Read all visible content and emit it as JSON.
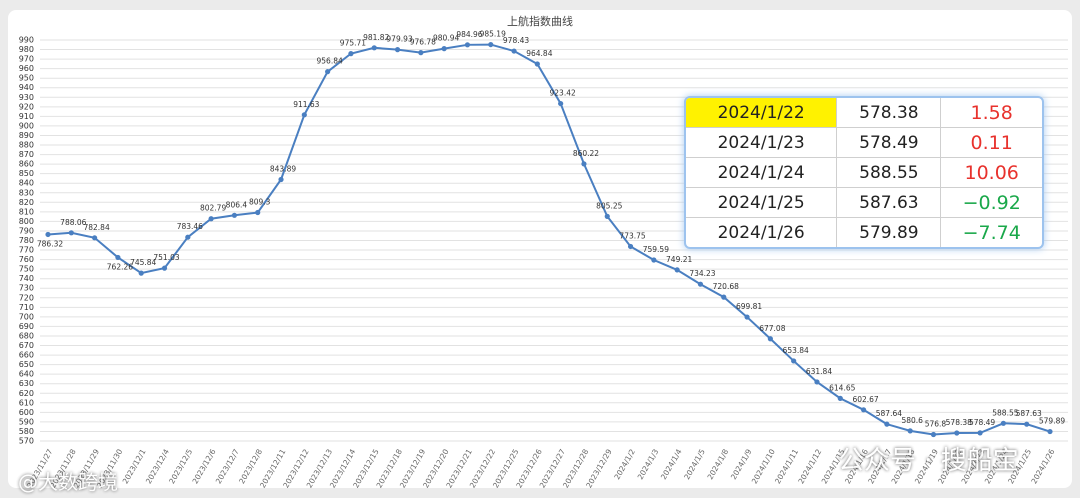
{
  "chart_data": {
    "type": "line",
    "title": "上航指数曲线",
    "categories": [
      "2023/11/27",
      "2023/11/28",
      "2023/11/29",
      "2023/11/30",
      "2023/12/1",
      "2023/12/4",
      "2023/12/5",
      "2023/12/6",
      "2023/12/7",
      "2023/12/8",
      "2023/12/11",
      "2023/12/12",
      "2023/12/13",
      "2023/12/14",
      "2023/12/15",
      "2023/12/18",
      "2023/12/19",
      "2023/12/20",
      "2023/12/21",
      "2023/12/22",
      "2023/12/25",
      "2023/12/26",
      "2023/12/27",
      "2023/12/28",
      "2023/12/29",
      "2024/1/2",
      "2024/1/3",
      "2024/1/4",
      "2024/1/5",
      "2024/1/8",
      "2024/1/9",
      "2024/1/10",
      "2024/1/11",
      "2024/1/12",
      "2024/1/15",
      "2024/1/16",
      "2024/1/17",
      "2024/1/18",
      "2024/1/19",
      "2024/1/22",
      "2024/1/23",
      "2024/1/24",
      "2024/1/25",
      "2024/1/26"
    ],
    "series": [
      {
        "name": "上航指数",
        "color": "#4a7fc1",
        "values": [
          786.32,
          788.06,
          782.84,
          762.26,
          745.84,
          751.03,
          783.46,
          802.79,
          806.4,
          809.3,
          843.89,
          911.63,
          956.84,
          975.71,
          981.82,
          979.93,
          976.78,
          980.94,
          984.96,
          985.19,
          978.43,
          964.84,
          923.42,
          860.22,
          805.25,
          773.75,
          759.59,
          749.21,
          734.23,
          720.68,
          699.81,
          677.08,
          653.84,
          631.84,
          614.65,
          602.67,
          587.64,
          580.6,
          576.8,
          578.38,
          578.49,
          588.55,
          587.63,
          579.89
        ]
      }
    ],
    "ylim": [
      570,
      990
    ],
    "yticks": [
      570,
      580,
      590,
      600,
      610,
      620,
      630,
      640,
      650,
      660,
      670,
      680,
      690,
      700,
      710,
      720,
      730,
      740,
      750,
      760,
      770,
      780,
      790,
      800,
      810,
      820,
      830,
      840,
      850,
      860,
      870,
      880,
      890,
      900,
      910,
      920,
      930,
      940,
      950,
      960,
      970,
      980,
      990
    ],
    "grid": true
  },
  "table": {
    "rows": [
      {
        "cells": [
          "2024/1/22",
          "578.38",
          "1.58"
        ],
        "color": "#e8322d",
        "highlight": "#fff200"
      },
      {
        "cells": [
          "2024/1/23",
          "578.49",
          "0.11"
        ],
        "color": "#e8322d"
      },
      {
        "cells": [
          "2024/1/24",
          "588.55",
          "10.06"
        ],
        "color": "#e8322d"
      },
      {
        "cells": [
          "2024/1/25",
          "587.63",
          "−0.92"
        ],
        "color": "#1aa84a"
      },
      {
        "cells": [
          "2024/1/26",
          "579.89",
          "−7.74"
        ],
        "color": "#1aa84a"
      }
    ]
  },
  "watermarks": [
    "公众号 · 搜船宝",
    "@大数跨境"
  ]
}
